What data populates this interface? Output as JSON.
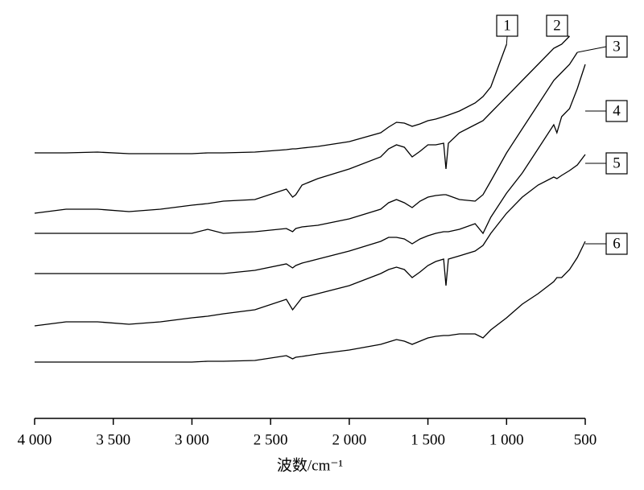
{
  "chart_data": {
    "type": "line",
    "xlabel": "波数/cm⁻¹",
    "x": [
      4000,
      3800,
      3600,
      3400,
      3200,
      3000,
      2900,
      2800,
      2600,
      2400,
      2360,
      2340,
      2300,
      2200,
      2000,
      1800,
      1750,
      1700,
      1650,
      1600,
      1550,
      1500,
      1450,
      1400,
      1385,
      1370,
      1300,
      1200,
      1150,
      1100,
      1000,
      900,
      800,
      700,
      680,
      650,
      600,
      550,
      500
    ],
    "xlim": [
      4000,
      500
    ],
    "xticks": [
      {
        "value": 4000,
        "label": "4 000"
      },
      {
        "value": 3500,
        "label": "3 500"
      },
      {
        "value": 3000,
        "label": "3 000"
      },
      {
        "value": 2500,
        "label": "2 500"
      },
      {
        "value": 2000,
        "label": "2 000"
      },
      {
        "value": 1500,
        "label": "1 500"
      },
      {
        "value": 1000,
        "label": "1 000"
      },
      500
    ],
    "ylim": [
      0,
      100
    ],
    "series": [
      {
        "name": "1",
        "color": "#000000",
        "values": [
          68,
          68,
          68.2,
          67.8,
          67.8,
          67.8,
          68,
          68,
          68.2,
          68.8,
          69,
          69,
          69.2,
          69.6,
          70.8,
          73,
          74.4,
          75.6,
          75.4,
          74.6,
          75.2,
          76,
          76.4,
          77,
          77.2,
          77.4,
          78.4,
          80.4,
          82,
          84.4,
          95,
          null,
          null,
          null,
          null,
          null,
          null,
          null,
          null
        ]
      },
      {
        "name": "2",
        "color": "#000000",
        "values": [
          53,
          54,
          54,
          53.4,
          54,
          55,
          55.4,
          56,
          56.4,
          59,
          57,
          57.6,
          60,
          61.6,
          64,
          67,
          69,
          70,
          69.4,
          67,
          68.4,
          70,
          70,
          70.4,
          64,
          70.4,
          73,
          75,
          76,
          78,
          82,
          86,
          90,
          94,
          94.4,
          95,
          97,
          null,
          null
        ]
      },
      {
        "name": "3",
        "color": "#000000",
        "values": [
          48,
          48,
          48,
          48,
          48,
          48,
          49,
          48,
          48.4,
          49.2,
          48.4,
          49.2,
          49.6,
          50,
          51.6,
          54,
          55.6,
          56.4,
          55.6,
          54.4,
          56,
          57,
          57.4,
          57.6,
          57.6,
          57.4,
          56.4,
          56,
          57.6,
          61,
          68,
          74,
          80,
          86,
          86.8,
          88,
          90,
          93,
          null
        ]
      },
      {
        "name": "4",
        "color": "#000000",
        "values": [
          38,
          38,
          38,
          38,
          38,
          38,
          38,
          38,
          38.8,
          40.4,
          39.4,
          40,
          40.6,
          41.6,
          43.6,
          46,
          47,
          47,
          46.6,
          45.4,
          46.6,
          47.4,
          48,
          48.4,
          48.4,
          48.4,
          49,
          50.4,
          48,
          52,
          58,
          63,
          69,
          75,
          73,
          77,
          79,
          84,
          90
        ]
      },
      {
        "name": "5",
        "color": "#000000",
        "values": [
          25,
          26,
          26,
          25.4,
          26,
          27,
          27.4,
          28,
          29,
          31.6,
          29,
          30,
          32,
          33,
          35,
          38,
          39,
          39.6,
          39,
          37,
          38.4,
          40,
          41,
          41.6,
          35,
          41.6,
          42.4,
          43.6,
          45,
          48,
          53,
          57,
          60,
          62,
          61.6,
          62.4,
          63.6,
          65,
          67.6
        ]
      },
      {
        "name": "6",
        "color": "#000000",
        "values": [
          16,
          16,
          16,
          16,
          16,
          16,
          16.2,
          16.2,
          16.4,
          17.6,
          16.8,
          17.2,
          17.4,
          18,
          19,
          20.4,
          21,
          21.6,
          21.2,
          20.4,
          21.2,
          22,
          22.4,
          22.6,
          22.6,
          22.6,
          23,
          23,
          22,
          24,
          27,
          30.4,
          33,
          36,
          37,
          37,
          39,
          42,
          46
        ]
      }
    ]
  }
}
